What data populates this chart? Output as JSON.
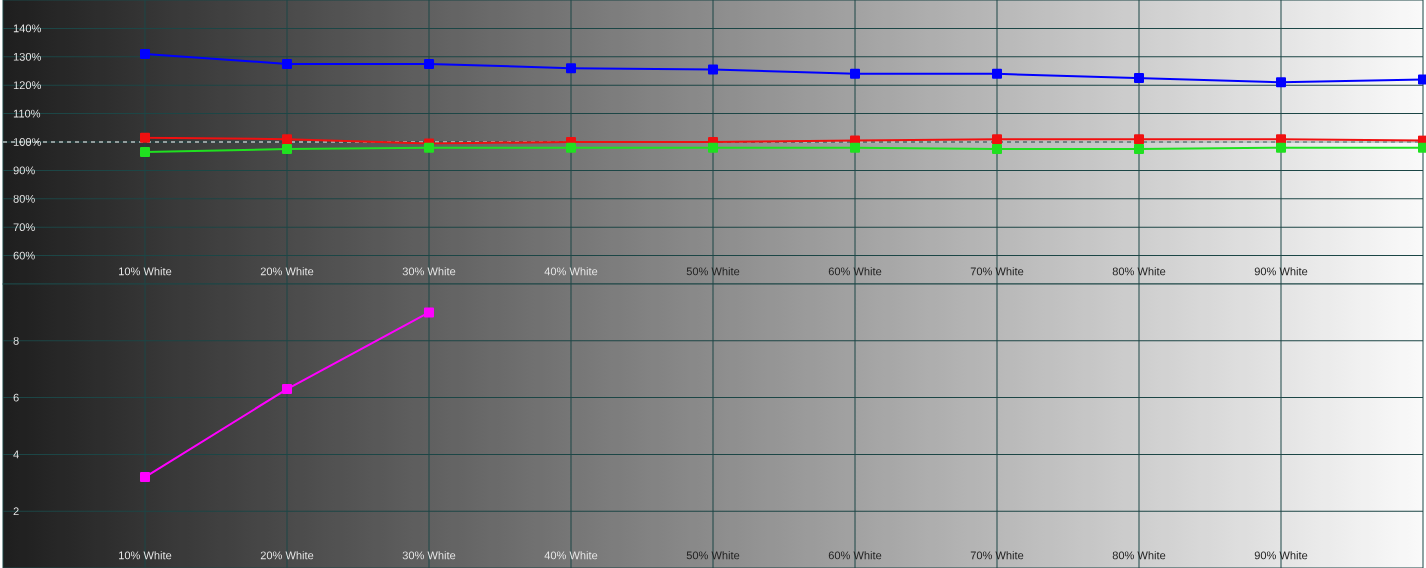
{
  "chart_data": [
    {
      "type": "line",
      "x": [
        10,
        20,
        30,
        40,
        50,
        60,
        70,
        80,
        90,
        100
      ],
      "xlim": [
        0,
        100
      ],
      "xticks": [
        {
          "value": 10,
          "label": "10% White"
        },
        {
          "value": 20,
          "label": "20% White"
        },
        {
          "value": 30,
          "label": "30% White"
        },
        {
          "value": 40,
          "label": "40% White"
        },
        {
          "value": 50,
          "label": "50% White"
        },
        {
          "value": 60,
          "label": "60% White"
        },
        {
          "value": 70,
          "label": "70% White"
        },
        {
          "value": 80,
          "label": "80% White"
        },
        {
          "value": 90,
          "label": "90% White"
        }
      ],
      "ylim": [
        50,
        150
      ],
      "yticks": [
        {
          "value": 60,
          "label": "60%"
        },
        {
          "value": 70,
          "label": "70%"
        },
        {
          "value": 80,
          "label": "80%"
        },
        {
          "value": 90,
          "label": "90%"
        },
        {
          "value": 100,
          "label": "100%"
        },
        {
          "value": 110,
          "label": "110%"
        },
        {
          "value": 120,
          "label": "120%"
        },
        {
          "value": 130,
          "label": "130%"
        },
        {
          "value": 140,
          "label": "140%"
        }
      ],
      "grid": true,
      "marker": "square",
      "line_style": "solid",
      "ref_lines": [
        {
          "axis": "y",
          "value": 100,
          "color": "#ffffff",
          "line_style": "dashed"
        }
      ],
      "series": [
        {
          "color": "#f01010",
          "values": [
            101.5,
            101,
            99.5,
            100,
            100,
            100.5,
            101,
            101,
            101,
            100.5
          ]
        },
        {
          "color": "#20e020",
          "values": [
            96.5,
            97.5,
            98,
            98,
            98,
            98,
            97.5,
            97.5,
            98,
            98
          ]
        },
        {
          "color": "#0000ff",
          "values": [
            131,
            127.5,
            127.5,
            126,
            125.5,
            124,
            124,
            122.5,
            121,
            122
          ]
        }
      ]
    },
    {
      "type": "line",
      "x": [
        10,
        20,
        30
      ],
      "xlim": [
        0,
        100
      ],
      "xticks": [
        {
          "value": 10,
          "label": "10% White"
        },
        {
          "value": 20,
          "label": "20% White"
        },
        {
          "value": 30,
          "label": "30% White"
        },
        {
          "value": 40,
          "label": "40% White"
        },
        {
          "value": 50,
          "label": "50% White"
        },
        {
          "value": 60,
          "label": "60% White"
        },
        {
          "value": 70,
          "label": "70% White"
        },
        {
          "value": 80,
          "label": "80% White"
        },
        {
          "value": 90,
          "label": "90% White"
        }
      ],
      "ylim": [
        0,
        10
      ],
      "yticks": [
        2,
        4,
        6,
        8
      ],
      "grid": true,
      "marker": "square",
      "line_style": "solid",
      "series": [
        {
          "color": "#ff00ff",
          "values": [
            3.2,
            6.3,
            9
          ]
        }
      ]
    }
  ]
}
